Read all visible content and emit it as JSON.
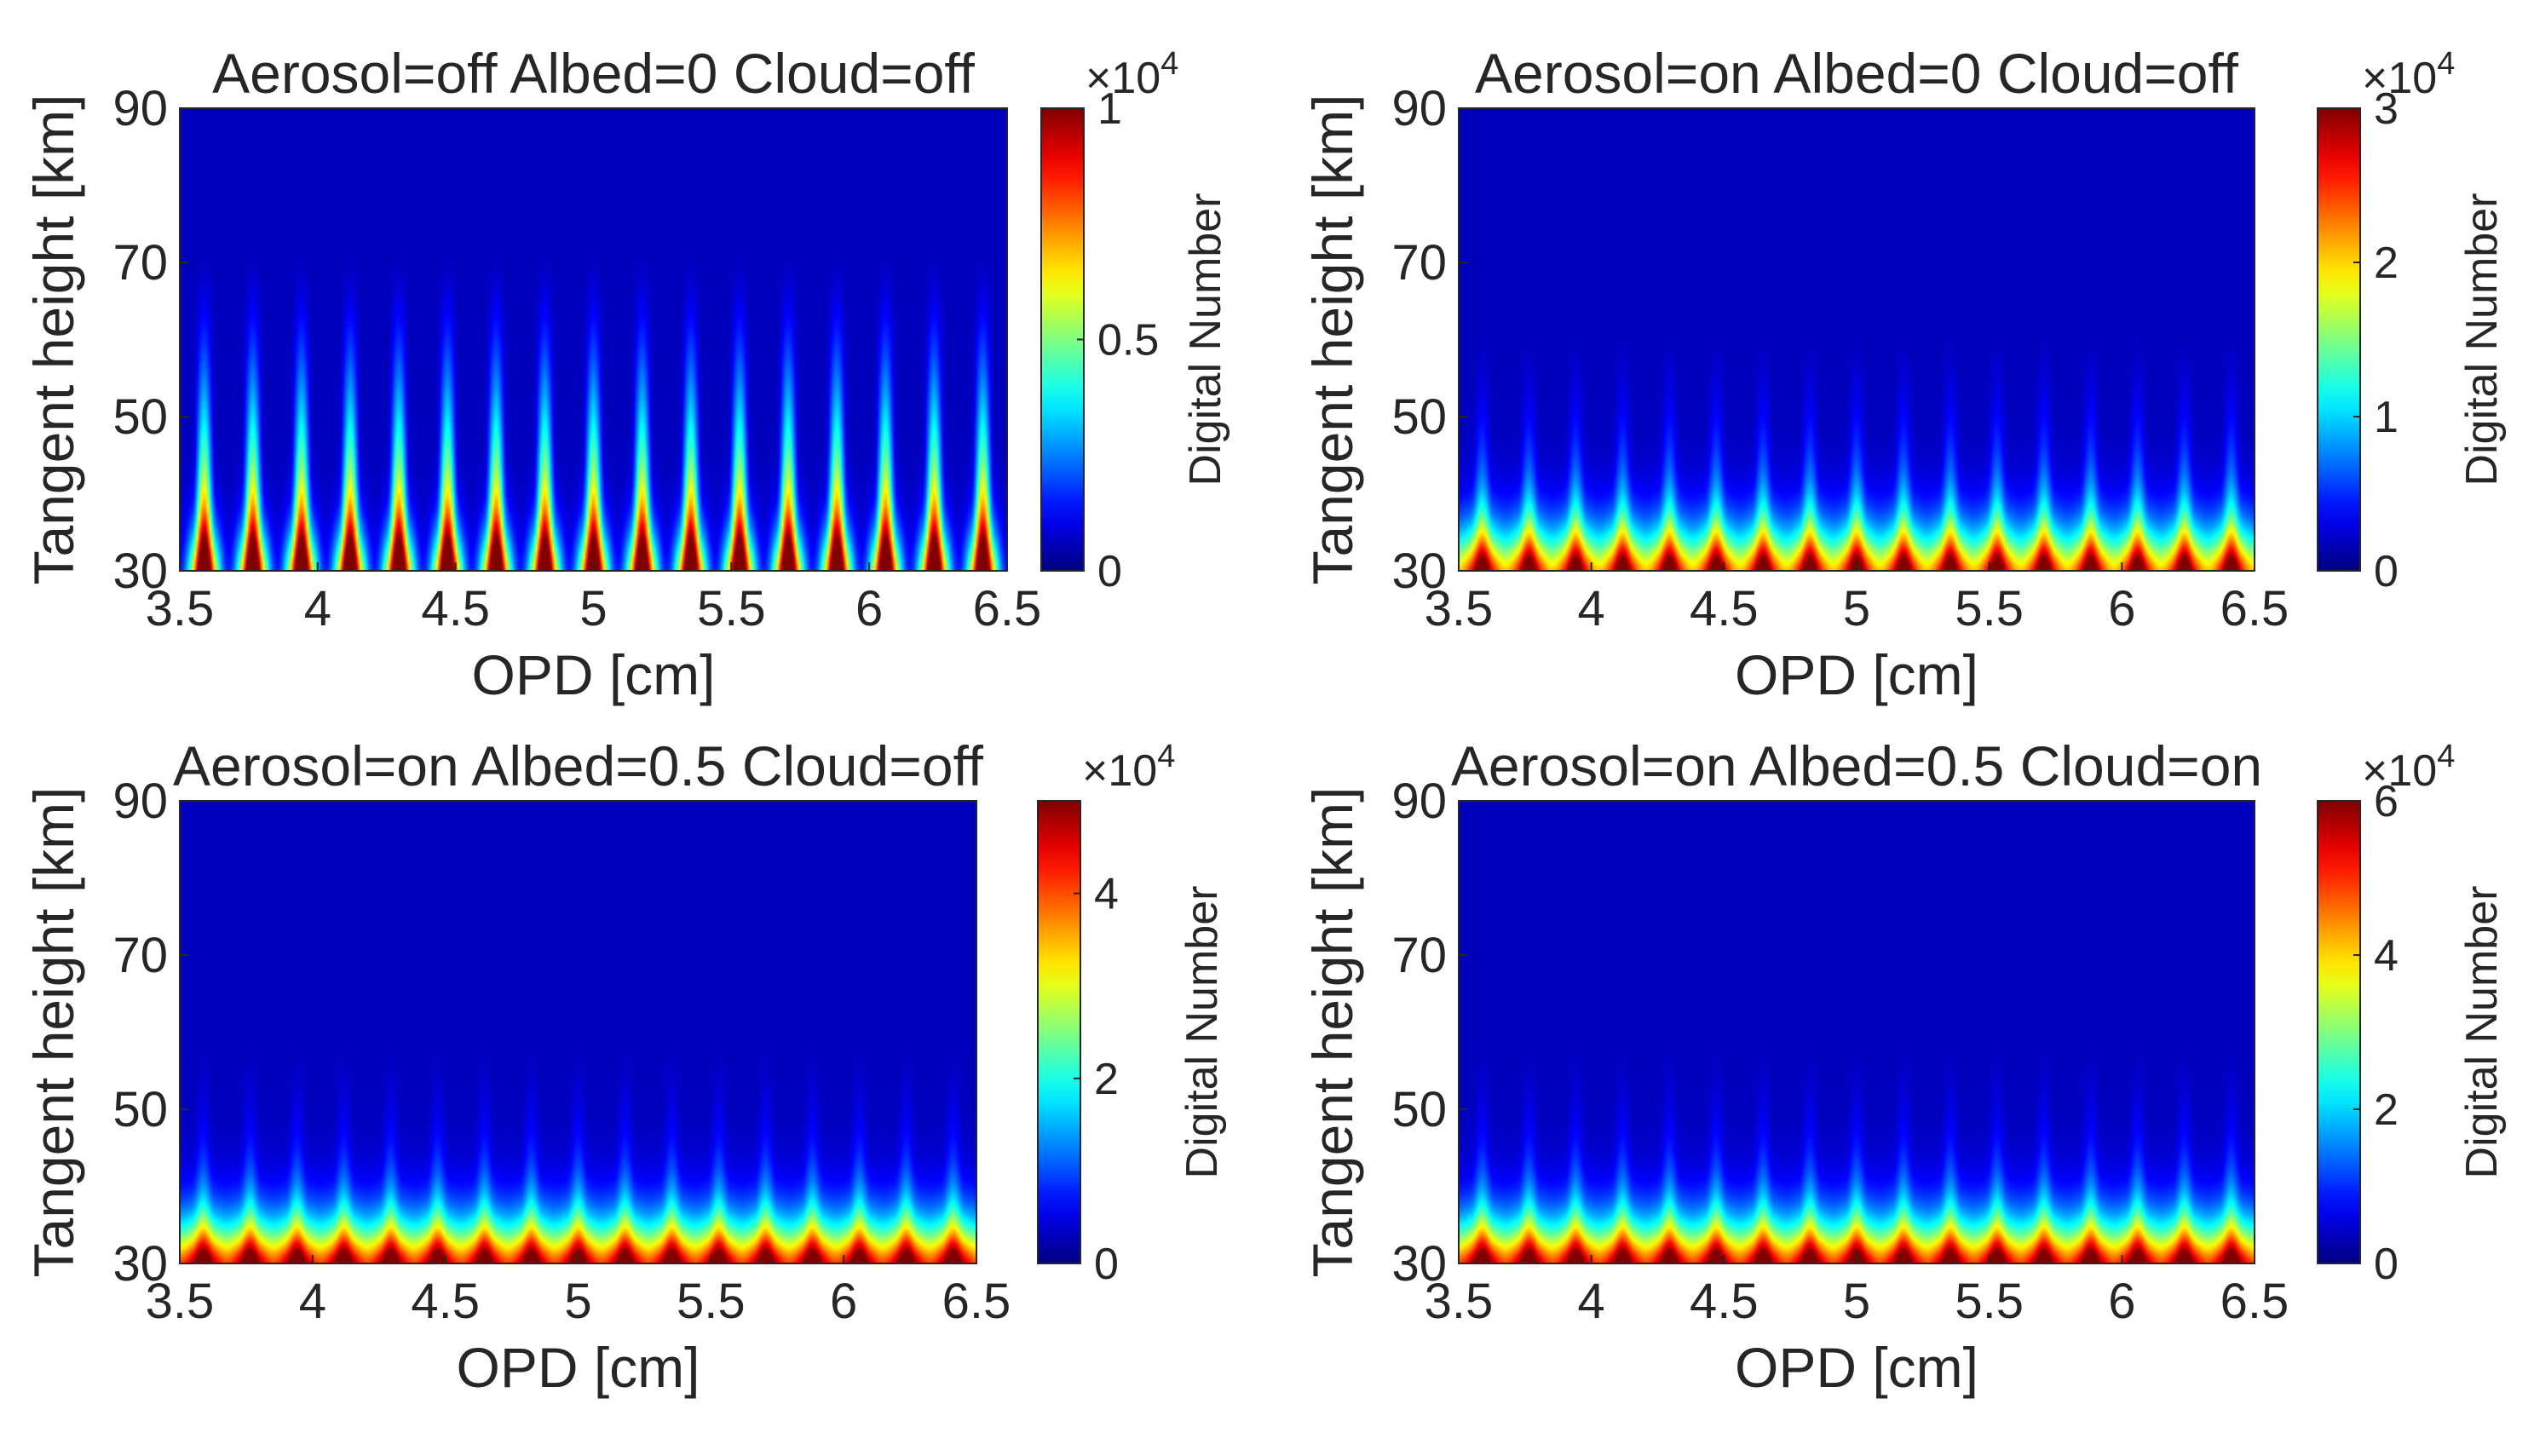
{
  "figure_colormap": "jet",
  "chart_data": [
    {
      "type": "heatmap",
      "title": "Aerosol=off Albed=0 Cloud=off",
      "xlabel": "OPD [cm]",
      "ylabel": "Tangent height [km]",
      "x_range": [
        3.5,
        6.5
      ],
      "y_range": [
        30,
        90
      ],
      "x_ticks": [
        3.5,
        4,
        4.5,
        5,
        5.5,
        6,
        6.5
      ],
      "x_tick_labels": [
        "3.5",
        "4",
        "4.5",
        "5",
        "5.5",
        "6",
        "6.5"
      ],
      "y_ticks": [
        30,
        50,
        70,
        90
      ],
      "y_tick_labels": [
        "30",
        "50",
        "70",
        "90"
      ],
      "colorbar": {
        "label": "Digital Number",
        "multiplier": "×10",
        "exponent": "4",
        "range": [
          0,
          1
        ],
        "ticks": [
          0,
          0.5,
          1
        ],
        "tick_labels": [
          "0",
          "0.5",
          "1"
        ]
      },
      "fringe_count": 17,
      "fringe_peak_top_km": 72,
      "base_level_fraction_at_30km": 0.9,
      "fringe_contrast": 0.9
    },
    {
      "type": "heatmap",
      "title": "Aerosol=on Albed=0 Cloud=off",
      "xlabel": "OPD [cm]",
      "ylabel": "Tangent height [km]",
      "x_range": [
        3.5,
        6.5
      ],
      "y_range": [
        30,
        90
      ],
      "x_ticks": [
        3.5,
        4,
        4.5,
        5,
        5.5,
        6,
        6.5
      ],
      "x_tick_labels": [
        "3.5",
        "4",
        "4.5",
        "5",
        "5.5",
        "6",
        "6.5"
      ],
      "y_ticks": [
        30,
        50,
        70,
        90
      ],
      "y_tick_labels": [
        "30",
        "50",
        "70",
        "90"
      ],
      "colorbar": {
        "label": "Digital Number",
        "multiplier": "×10",
        "exponent": "4",
        "range": [
          0,
          3
        ],
        "ticks": [
          0,
          1,
          2,
          3
        ],
        "tick_labels": [
          "0",
          "1",
          "2",
          "3"
        ]
      },
      "fringe_count": 17,
      "fringe_peak_top_km": 62,
      "base_level_fraction_at_30km": 0.95,
      "fringe_contrast": 0.35
    },
    {
      "type": "heatmap",
      "title": "Aerosol=on Albed=0.5 Cloud=off",
      "xlabel": "OPD [cm]",
      "ylabel": "Tangent height [km]",
      "x_range": [
        3.5,
        6.5
      ],
      "y_range": [
        30,
        90
      ],
      "x_ticks": [
        3.5,
        4,
        4.5,
        5,
        5.5,
        6,
        6.5
      ],
      "x_tick_labels": [
        "3.5",
        "4",
        "4.5",
        "5",
        "5.5",
        "6",
        "6.5"
      ],
      "y_ticks": [
        30,
        50,
        70,
        90
      ],
      "y_tick_labels": [
        "30",
        "50",
        "70",
        "90"
      ],
      "colorbar": {
        "label": "Digital Number",
        "multiplier": "×10",
        "exponent": "4",
        "range": [
          0,
          5
        ],
        "ticks": [
          0,
          2,
          4
        ],
        "tick_labels": [
          "0",
          "2",
          "4"
        ]
      },
      "fringe_count": 17,
      "fringe_peak_top_km": 60,
      "base_level_fraction_at_30km": 1.0,
      "fringe_contrast": 0.25
    },
    {
      "type": "heatmap",
      "title": "Aerosol=on Albed=0.5 Cloud=on",
      "xlabel": "OPD [cm]",
      "ylabel": "Tangent height [km]",
      "x_range": [
        3.5,
        6.5
      ],
      "y_range": [
        30,
        90
      ],
      "x_ticks": [
        3.5,
        4,
        4.5,
        5,
        5.5,
        6,
        6.5
      ],
      "x_tick_labels": [
        "3.5",
        "4",
        "4.5",
        "5",
        "5.5",
        "6",
        "6.5"
      ],
      "y_ticks": [
        30,
        50,
        70,
        90
      ],
      "y_tick_labels": [
        "30",
        "50",
        "70",
        "90"
      ],
      "colorbar": {
        "label": "Digital Number",
        "multiplier": "×10",
        "exponent": "4",
        "range": [
          0,
          6
        ],
        "ticks": [
          0,
          2,
          4,
          6
        ],
        "tick_labels": [
          "0",
          "2",
          "4",
          "6"
        ]
      },
      "fringe_count": 17,
      "fringe_peak_top_km": 60,
      "base_level_fraction_at_30km": 1.0,
      "fringe_contrast": 0.25
    }
  ]
}
